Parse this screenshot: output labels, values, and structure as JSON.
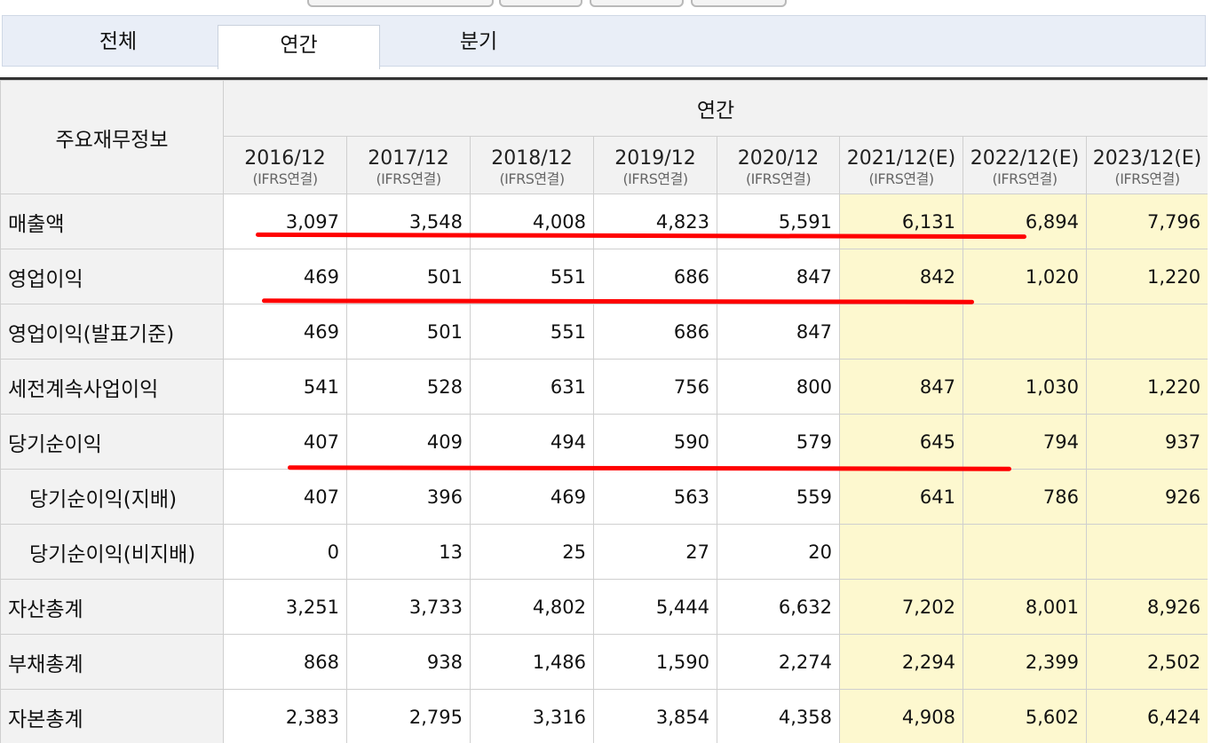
{
  "tabs": [
    {
      "label": "전체",
      "active": false
    },
    {
      "label": "연간",
      "active": true
    },
    {
      "label": "분기",
      "active": false
    }
  ],
  "table": {
    "corner_label": "주요재무정보",
    "group_label": "연간",
    "columns": [
      {
        "year": "2016/12",
        "std": "(IFRS연결)",
        "estimate": false
      },
      {
        "year": "2017/12",
        "std": "(IFRS연결)",
        "estimate": false
      },
      {
        "year": "2018/12",
        "std": "(IFRS연결)",
        "estimate": false
      },
      {
        "year": "2019/12",
        "std": "(IFRS연결)",
        "estimate": false
      },
      {
        "year": "2020/12",
        "std": "(IFRS연결)",
        "estimate": false
      },
      {
        "year": "2021/12(E)",
        "std": "(IFRS연결)",
        "estimate": true
      },
      {
        "year": "2022/12(E)",
        "std": "(IFRS연결)",
        "estimate": true
      },
      {
        "year": "2023/12(E)",
        "std": "(IFRS연결)",
        "estimate": true
      }
    ],
    "rows": [
      {
        "label": "매출액",
        "indent": false,
        "values": [
          "3,097",
          "3,548",
          "4,008",
          "4,823",
          "5,591",
          "6,131",
          "6,894",
          "7,796"
        ]
      },
      {
        "label": "영업이익",
        "indent": false,
        "values": [
          "469",
          "501",
          "551",
          "686",
          "847",
          "842",
          "1,020",
          "1,220"
        ]
      },
      {
        "label": "영업이익(발표기준)",
        "indent": false,
        "values": [
          "469",
          "501",
          "551",
          "686",
          "847",
          "",
          "",
          ""
        ]
      },
      {
        "label": "세전계속사업이익",
        "indent": false,
        "values": [
          "541",
          "528",
          "631",
          "756",
          "800",
          "847",
          "1,030",
          "1,220"
        ]
      },
      {
        "label": "당기순이익",
        "indent": false,
        "values": [
          "407",
          "409",
          "494",
          "590",
          "579",
          "645",
          "794",
          "937"
        ]
      },
      {
        "label": "당기순이익(지배)",
        "indent": true,
        "values": [
          "407",
          "396",
          "469",
          "563",
          "559",
          "641",
          "786",
          "926"
        ]
      },
      {
        "label": "당기순이익(비지배)",
        "indent": true,
        "values": [
          "0",
          "13",
          "25",
          "27",
          "20",
          "",
          "",
          ""
        ]
      },
      {
        "label": "자산총계",
        "indent": false,
        "values": [
          "3,251",
          "3,733",
          "4,802",
          "5,444",
          "6,632",
          "7,202",
          "8,001",
          "8,926"
        ]
      },
      {
        "label": "부채총계",
        "indent": false,
        "values": [
          "868",
          "938",
          "1,486",
          "1,590",
          "2,274",
          "2,294",
          "2,399",
          "2,502"
        ]
      },
      {
        "label": "자본총계",
        "indent": false,
        "values": [
          "2,383",
          "2,795",
          "3,316",
          "3,854",
          "4,358",
          "4,908",
          "5,602",
          "6,424"
        ]
      }
    ]
  },
  "colors": {
    "tab_bar": "#e9eef7",
    "header_bg": "#f2f2f2",
    "estimate_bg": "#fdf8cf",
    "annotation_red": "#ff0000"
  }
}
